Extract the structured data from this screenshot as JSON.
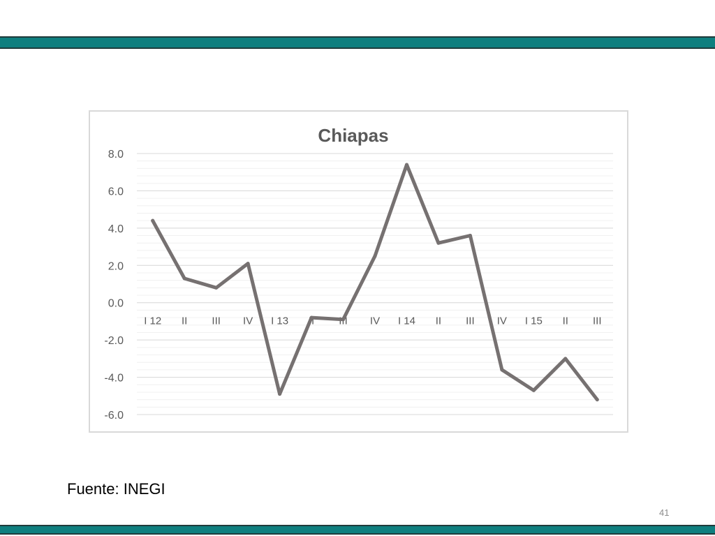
{
  "colors": {
    "band": "#0f7f7f",
    "series_line": "#767171",
    "gridline_major": "#d9d9d9",
    "gridline_minor": "#f0f0f0",
    "text": "#595959",
    "title": "#595959"
  },
  "chart_data": {
    "type": "line",
    "title": "Chiapas",
    "xlabel": "",
    "ylabel": "",
    "ylim": [
      -6.0,
      8.0
    ],
    "y_ticks": [
      "8.0",
      "6.0",
      "4.0",
      "2.0",
      "0.0",
      "-2.0",
      "-4.0",
      "-6.0"
    ],
    "grid": true,
    "legend": "none",
    "categories": [
      "I 12",
      "II",
      "III",
      "IV",
      "I 13",
      "II",
      "III",
      "IV",
      "I 14",
      "II",
      "III",
      "IV",
      "I 15",
      "II",
      "III"
    ],
    "series": [
      {
        "values": [
          4.4,
          1.3,
          0.8,
          2.1,
          -4.9,
          -0.8,
          -0.9,
          2.5,
          7.4,
          3.2,
          3.6,
          -3.6,
          -4.7,
          -3.0,
          -5.2
        ]
      }
    ]
  },
  "footer": {
    "source": "Fuente: INEGI",
    "page_number": "41"
  }
}
